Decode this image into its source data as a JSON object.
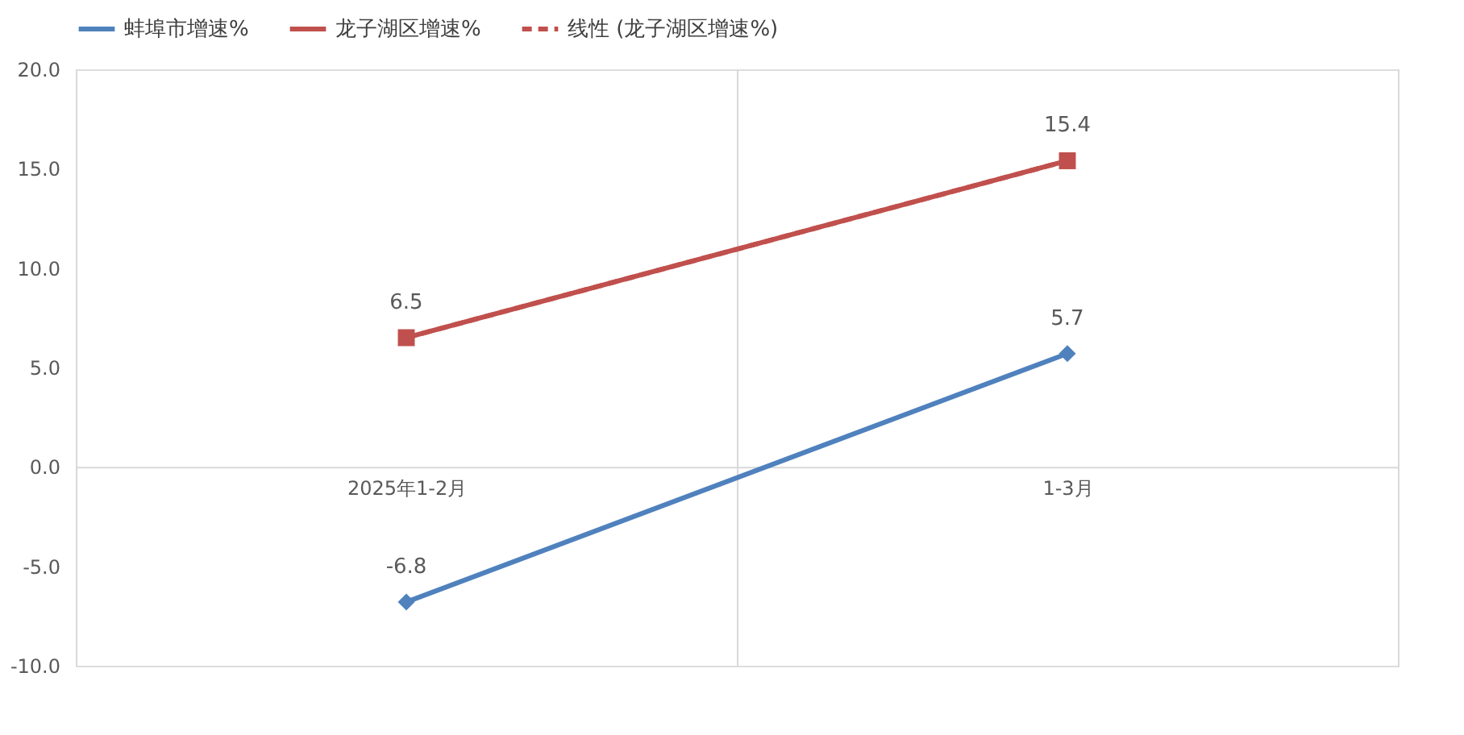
{
  "chart_data": {
    "type": "line",
    "categories": [
      "2025年1-2月",
      "1-3月"
    ],
    "series": [
      {
        "name": "蚌埠市增速%",
        "color": "#4f81bd",
        "values": [
          -6.8,
          5.7
        ],
        "marker": "diamond",
        "line_style": "solid"
      },
      {
        "name": "龙子湖区增速%",
        "color": "#c0504d",
        "values": [
          6.5,
          15.4
        ],
        "marker": "square",
        "line_style": "solid"
      },
      {
        "name": "线性 (龙子湖区增速%)",
        "color": "#c0504d",
        "values": [
          6.5,
          15.4
        ],
        "marker": "none",
        "line_style": "dashed",
        "data_labels": false
      }
    ],
    "ylim": [
      -10,
      20
    ],
    "yticks": [
      {
        "value": -10,
        "label": "-10.0"
      },
      {
        "value": -5,
        "label": "-5.0"
      },
      {
        "value": 0,
        "label": "0.0"
      },
      {
        "value": 5,
        "label": "5.0"
      },
      {
        "value": 10,
        "label": "10.0"
      },
      {
        "value": 15,
        "label": "15.0"
      },
      {
        "value": 20,
        "label": "20.0"
      }
    ],
    "grid": "x",
    "legend": "top",
    "data_labels": true
  }
}
